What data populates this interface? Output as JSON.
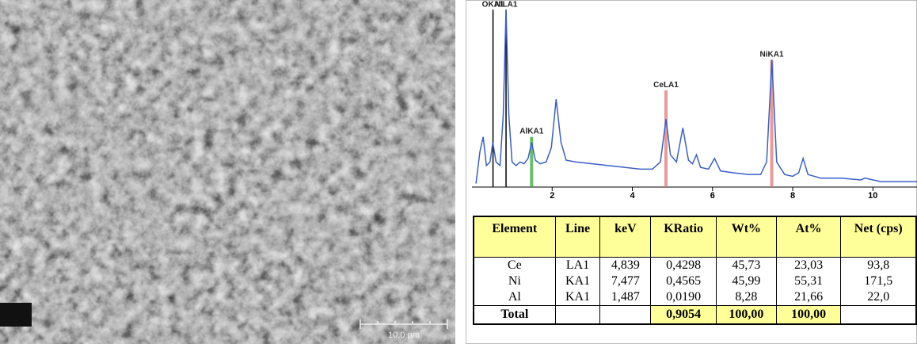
{
  "image": {
    "scale_bar": "10,0 µm"
  },
  "spectrum": {
    "xlim": [
      0,
      11.1
    ],
    "xticks": [
      2,
      4,
      6,
      8,
      10
    ],
    "ylim": [
      0,
      100
    ],
    "line_color": "#3a5fc8",
    "kev": [
      0.1,
      0.2,
      0.28,
      0.36,
      0.45,
      0.52,
      0.6,
      0.7,
      0.78,
      0.85,
      0.92,
      1.0,
      1.1,
      1.2,
      1.3,
      1.4,
      1.49,
      1.58,
      1.7,
      1.85,
      1.98,
      2.1,
      2.22,
      2.35,
      2.6,
      3.0,
      3.4,
      3.8,
      4.2,
      4.5,
      4.7,
      4.84,
      4.95,
      5.1,
      5.26,
      5.4,
      5.5,
      5.6,
      5.7,
      5.9,
      6.05,
      6.2,
      6.5,
      6.9,
      7.2,
      7.35,
      7.48,
      7.6,
      7.8,
      8.0,
      8.15,
      8.26,
      8.38,
      8.7,
      9.2,
      9.7,
      9.8,
      10.2,
      10.8,
      11.1
    ],
    "counts": [
      2,
      20,
      28,
      12,
      14,
      25,
      14,
      12,
      40,
      99,
      40,
      14,
      12,
      14,
      13,
      16,
      25,
      15,
      13,
      14,
      22,
      49,
      25,
      15,
      14,
      13,
      12,
      11,
      10,
      10,
      14,
      38,
      18,
      14,
      33,
      15,
      13,
      18,
      11,
      10,
      16,
      9,
      8,
      7,
      7,
      14,
      71,
      14,
      7,
      6,
      8,
      16,
      7,
      5,
      5,
      4,
      5,
      3,
      3,
      3
    ],
    "markers": [
      {
        "label": "OKA1",
        "kev": 0.525,
        "height": 99,
        "color": "#000000"
      },
      {
        "label": "NiLA1",
        "kev": 0.85,
        "height": 99,
        "color": "#000000"
      },
      {
        "label": "AlKA1",
        "kev": 1.487,
        "height": 28,
        "color": "#2aa02a"
      },
      {
        "label": "CeLA1",
        "kev": 4.839,
        "height": 54,
        "color": "#e07070"
      },
      {
        "label": "NiKA1",
        "kev": 7.477,
        "height": 71,
        "color": "#e07070"
      }
    ]
  },
  "table": {
    "header": [
      "Element",
      "Line",
      "keV",
      "KRatio",
      "Wt%",
      "At%",
      "Net (cps)"
    ],
    "rows": [
      [
        "Ce",
        "LA1",
        "4,839",
        "0,4298",
        "45,73",
        "23,03",
        "93,8"
      ],
      [
        "Ni",
        "KA1",
        "7,477",
        "0,4565",
        "45,99",
        "55,31",
        "171,5"
      ],
      [
        "Al",
        "KA1",
        "1,487",
        "0,0190",
        "8,28",
        "21,66",
        "22,0"
      ]
    ],
    "total": {
      "label": "Total",
      "kratio": "0,9054",
      "wt": "100,00",
      "at": "100,00"
    }
  }
}
